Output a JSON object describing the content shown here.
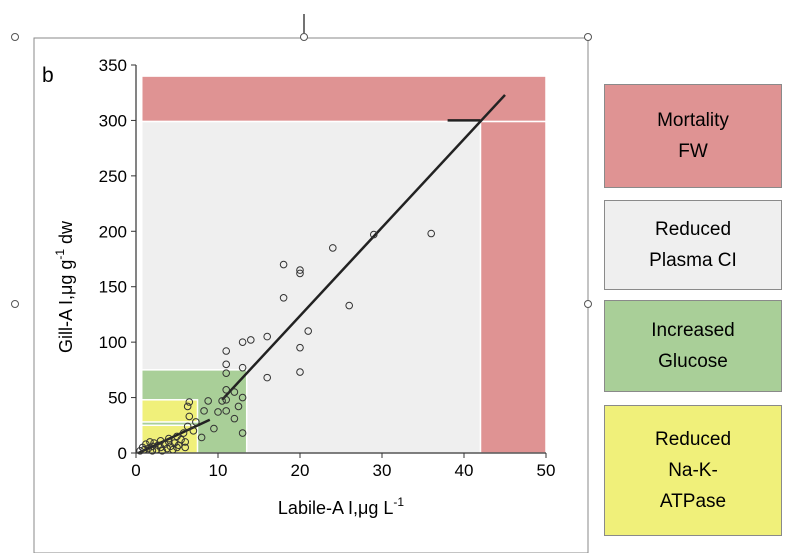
{
  "panel_label": "b",
  "colors": {
    "mortality": "#df9393",
    "reduced_plasma": "#efefef",
    "increased_glucose": "#a9cf98",
    "reduced_atpase": "#f0f07a",
    "frame": "#8a8a8a"
  },
  "legend": [
    {
      "key": "mortality",
      "lines": [
        "Mortality",
        "FW"
      ]
    },
    {
      "key": "reduced_plasma",
      "lines": [
        "Reduced",
        "Plasma CI"
      ]
    },
    {
      "key": "increased_glucose",
      "lines": [
        "Increased",
        "Glucose"
      ]
    },
    {
      "key": "reduced_atpase",
      "lines": [
        "Reduced",
        "Na-K-",
        "ATPase"
      ]
    }
  ],
  "chart_data": {
    "type": "scatter",
    "xlabel_parts": [
      "Labile-A I,",
      "μ",
      "g L",
      "-1"
    ],
    "ylabel_parts": [
      "Gill-A I,",
      "μ",
      "g g",
      "-1",
      " dw"
    ],
    "xlim": [
      0,
      50
    ],
    "ylim": [
      0,
      350
    ],
    "x_ticks": [
      0,
      10,
      20,
      30,
      40,
      50
    ],
    "y_ticks": [
      0,
      50,
      100,
      150,
      200,
      250,
      300,
      350
    ],
    "grid": false,
    "regions": [
      {
        "key": "mortality",
        "x": [
          0.7,
          50
        ],
        "y": [
          299,
          340
        ]
      },
      {
        "key": "mortality",
        "x": [
          42,
          50
        ],
        "y": [
          0,
          299
        ]
      },
      {
        "key": "reduced_plasma",
        "x": [
          0.7,
          42
        ],
        "y": [
          0,
          299
        ]
      },
      {
        "key": "increased_glucose",
        "x": [
          0.7,
          13.5
        ],
        "y": [
          0,
          75
        ]
      },
      {
        "key": "reduced_atpase",
        "x": [
          0.7,
          7.5
        ],
        "y": [
          28,
          48
        ]
      },
      {
        "key": "reduced_atpase",
        "x": [
          0.7,
          7.5
        ],
        "y": [
          0,
          25
        ]
      }
    ],
    "regression_line": [
      [
        10.5,
        48
      ],
      [
        45,
        323
      ]
    ],
    "short_lines": [
      [
        [
          0.3,
          0
        ],
        [
          9,
          30
        ]
      ],
      [
        [
          38,
          300
        ],
        [
          42,
          300
        ]
      ]
    ],
    "points": [
      [
        0.5,
        2
      ],
      [
        0.8,
        5
      ],
      [
        1,
        3
      ],
      [
        1.2,
        8
      ],
      [
        1.5,
        4
      ],
      [
        1.7,
        10
      ],
      [
        2,
        2
      ],
      [
        2,
        6
      ],
      [
        2.2,
        9
      ],
      [
        2.5,
        3
      ],
      [
        2.7,
        7
      ],
      [
        3,
        5
      ],
      [
        3,
        11
      ],
      [
        3.2,
        2
      ],
      [
        3.5,
        8
      ],
      [
        3.8,
        4
      ],
      [
        4,
        10
      ],
      [
        4,
        13
      ],
      [
        4.2,
        6
      ],
      [
        4.5,
        3
      ],
      [
        4.7,
        9
      ],
      [
        5,
        5
      ],
      [
        5,
        15
      ],
      [
        5.2,
        7
      ],
      [
        5.5,
        12
      ],
      [
        5.8,
        18
      ],
      [
        6,
        5
      ],
      [
        6,
        10
      ],
      [
        6.3,
        24
      ],
      [
        6.5,
        33
      ],
      [
        6.3,
        42
      ],
      [
        6.5,
        46
      ],
      [
        7,
        20
      ],
      [
        7.3,
        28
      ],
      [
        8,
        14
      ],
      [
        8.3,
        38
      ],
      [
        8.8,
        47
      ],
      [
        9.5,
        22
      ],
      [
        10,
        37
      ],
      [
        10.5,
        47
      ],
      [
        11,
        92
      ],
      [
        11,
        80
      ],
      [
        11,
        72
      ],
      [
        11,
        57
      ],
      [
        11,
        48
      ],
      [
        11,
        38
      ],
      [
        12,
        31
      ],
      [
        12,
        55
      ],
      [
        12.5,
        42
      ],
      [
        13,
        77
      ],
      [
        13,
        100
      ],
      [
        13,
        50
      ],
      [
        13,
        18
      ],
      [
        14,
        102
      ],
      [
        16,
        105
      ],
      [
        16,
        68
      ],
      [
        18,
        140
      ],
      [
        18,
        170
      ],
      [
        20,
        162
      ],
      [
        20,
        165
      ],
      [
        20,
        95
      ],
      [
        20,
        73
      ],
      [
        21,
        110
      ],
      [
        24,
        185
      ],
      [
        26,
        133
      ],
      [
        29,
        197
      ],
      [
        36,
        198
      ]
    ]
  }
}
